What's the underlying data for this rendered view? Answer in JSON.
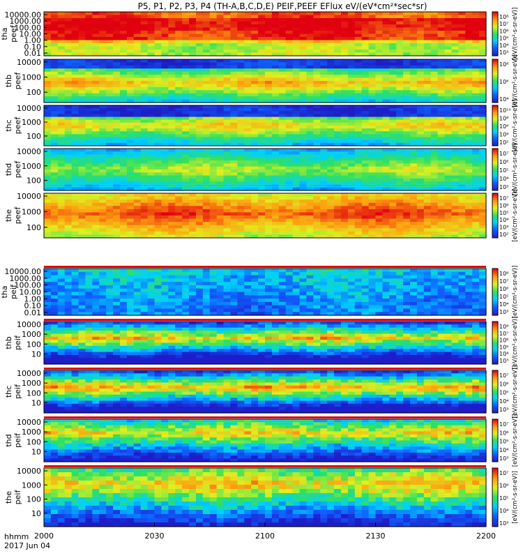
{
  "chart_data": {
    "type": "heatmap",
    "title": "P5, P1, P2, P3, P4 (TH-A,B,C,D,E) PEIF,PEEF EFlux eV/(eV*cm²*sec*sr)",
    "x_axis": {
      "range": [
        "2000",
        "2200"
      ],
      "tick_labels": [
        "2000",
        "2030",
        "2100",
        "2130",
        "2200"
      ],
      "label_line1": "hhmm",
      "label_line2": "2017 Jun 04"
    },
    "colorbar_label": "[eV/(cm²-s-sr-eV)]",
    "panels": [
      {
        "label_top": "tha",
        "label_bottom": "peef",
        "ylim": [
          0.01,
          10000
        ],
        "y_ticks": [
          "10000.00",
          "1000.00",
          "100.00",
          "10.00",
          "1.00",
          "0.10",
          "0.01"
        ],
        "cb_ticks": [
          "10⁸",
          "10⁷",
          "10⁶",
          "10⁵",
          "10⁴",
          "10³"
        ]
      },
      {
        "label_top": "thb",
        "label_bottom": "peef",
        "ylim": [
          30,
          20000
        ],
        "y_ticks": [
          "10000",
          "1000",
          "100"
        ],
        "cb_ticks": [
          "10⁸",
          "10⁶",
          "10⁴"
        ]
      },
      {
        "label_top": "thc",
        "label_bottom": "peef",
        "ylim": [
          30,
          20000
        ],
        "y_ticks": [
          "10000",
          "1000",
          "100"
        ],
        "cb_ticks": [
          "10¹⁰",
          "10⁸",
          "10⁶",
          "10⁴",
          "10²"
        ]
      },
      {
        "label_top": "thd",
        "label_bottom": "peef",
        "ylim": [
          30,
          20000
        ],
        "y_ticks": [
          "10000",
          "1000",
          "100"
        ],
        "cb_ticks": [
          "10⁷",
          "10⁶",
          "10⁵",
          "10⁴",
          "10³"
        ]
      },
      {
        "label_top": "the",
        "label_bottom": "peef",
        "ylim": [
          30,
          20000
        ],
        "y_ticks": [
          "10000",
          "1000",
          "100"
        ],
        "cb_ticks": [
          "10⁷",
          "10⁶",
          "10⁵",
          "10⁴",
          "10³",
          "10²"
        ]
      },
      {
        "label_top": "tha",
        "label_bottom": "peif",
        "ylim": [
          0.01,
          10000
        ],
        "y_ticks": [
          "10000.00",
          "1000.00",
          "100.00",
          "10.00",
          "1.00",
          "0.10",
          "0.01"
        ],
        "cb_ticks": [
          "10⁸",
          "10⁷",
          "10⁶",
          "10⁵",
          "10⁴",
          "10³"
        ]
      },
      {
        "label_top": "thb",
        "label_bottom": "peif",
        "ylim": [
          5,
          20000
        ],
        "y_ticks": [
          "10000",
          "1000",
          "100",
          "10"
        ],
        "cb_ticks": [
          "10⁸",
          "10⁷",
          "10⁶",
          "10⁵",
          "10⁴",
          "10³"
        ]
      },
      {
        "label_top": "thc",
        "label_bottom": "peif",
        "ylim": [
          5,
          20000
        ],
        "y_ticks": [
          "10000",
          "1000",
          "100",
          "10"
        ],
        "cb_ticks": [
          "10⁷",
          "10⁶",
          "10⁵",
          "10⁴",
          "10³"
        ]
      },
      {
        "label_top": "thd",
        "label_bottom": "peif",
        "ylim": [
          5,
          20000
        ],
        "y_ticks": [
          "10000",
          "1000",
          "100",
          "10"
        ],
        "cb_ticks": [
          "10⁷",
          "10⁶",
          "10⁵",
          "10⁴",
          "10³"
        ]
      },
      {
        "label_top": "the",
        "label_bottom": "peif",
        "ylim": [
          5,
          20000
        ],
        "y_ticks": [
          "10000",
          "1000",
          "100",
          "10"
        ],
        "cb_ticks": [
          "10⁷",
          "10⁶",
          "10⁵",
          "10⁴",
          "10³"
        ]
      }
    ]
  }
}
